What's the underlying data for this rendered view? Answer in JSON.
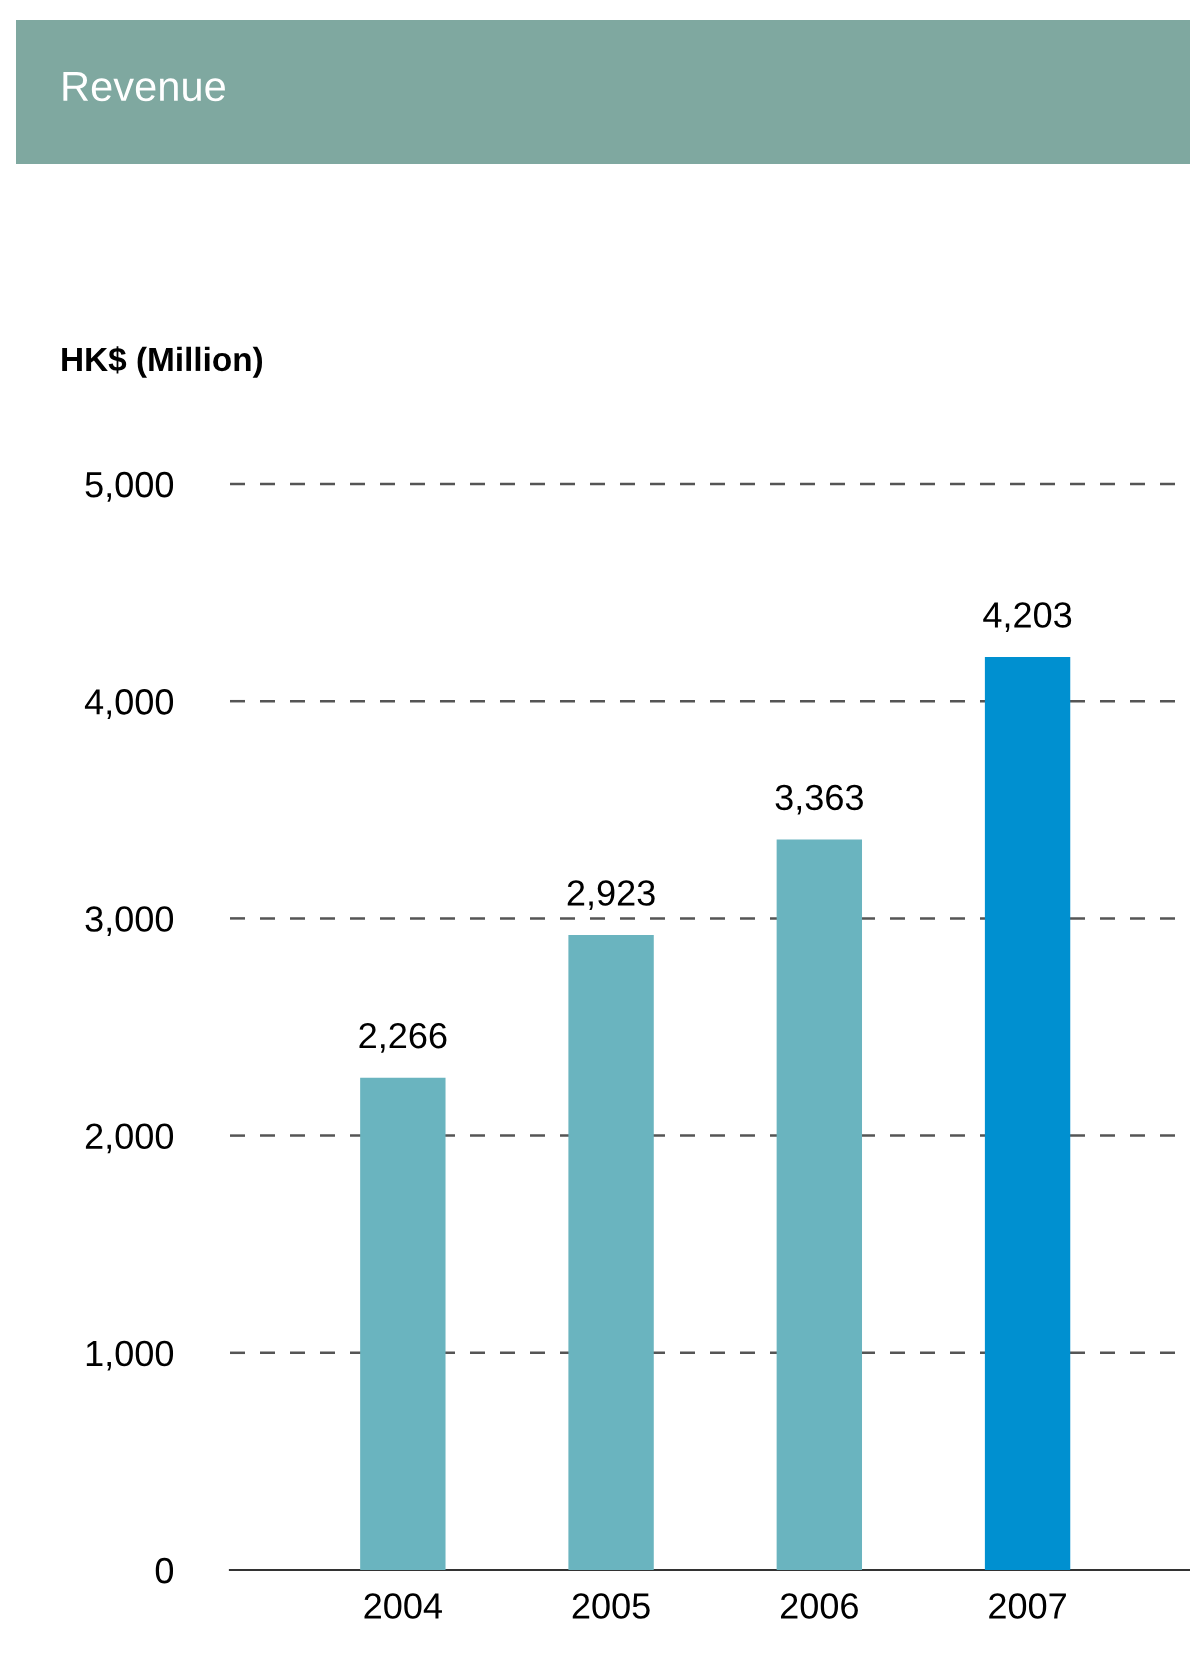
{
  "chart_data": {
    "type": "bar",
    "title": "Revenue",
    "ylabel": "HK$ (Million)",
    "categories": [
      "2004",
      "2005",
      "2006",
      "2007"
    ],
    "values": [
      2266,
      2923,
      3363,
      4203
    ],
    "colors": [
      "#6ab4bf",
      "#6ab4bf",
      "#6ab4bf",
      "#0090d0"
    ],
    "value_labels": [
      "2,266",
      "2,923",
      "3,363",
      "4,203"
    ],
    "ylim": [
      0,
      5000
    ],
    "yticks": [
      {
        "value": 0,
        "label": "0"
      },
      {
        "value": 1000,
        "label": "1,000"
      },
      {
        "value": 2000,
        "label": "2,000"
      },
      {
        "value": 3000,
        "label": "3,000"
      },
      {
        "value": 4000,
        "label": "4,000"
      },
      {
        "value": 5000,
        "label": "5,000"
      }
    ],
    "grid": "y"
  }
}
